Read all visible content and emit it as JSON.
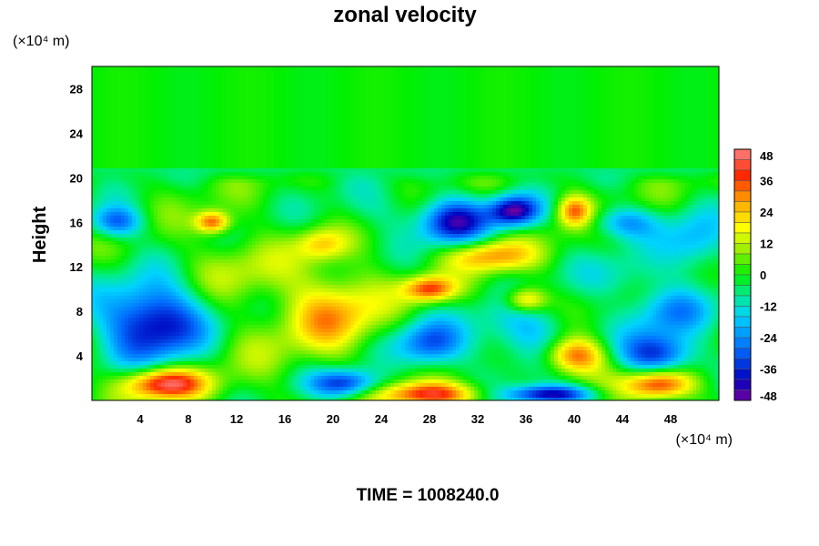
{
  "chart_data": {
    "type": "heatmap",
    "title": "zonal velocity",
    "ylabel": "Height",
    "xlabel": "",
    "x_unit": "(×10⁴ m)",
    "y_unit": "(×10⁴ m)",
    "xlim": [
      0,
      52
    ],
    "ylim": [
      0,
      30
    ],
    "x_ticks": [
      4,
      8,
      12,
      16,
      20,
      24,
      28,
      32,
      36,
      40,
      44,
      48
    ],
    "y_ticks": [
      4,
      8,
      12,
      16,
      20,
      24,
      28
    ],
    "colorbar": {
      "min": -48,
      "max": 48,
      "step": 4,
      "labels": [
        48,
        36,
        24,
        12,
        0,
        -12,
        -24,
        -36,
        -48
      ]
    },
    "upper_layer_value": 0,
    "blobs": [
      {
        "x": 5,
        "y": 7,
        "sx": 3.0,
        "sy": 2.5,
        "v": -44
      },
      {
        "x": 6,
        "y": 1.5,
        "sx": 2.5,
        "sy": 1.0,
        "v": 44
      },
      {
        "x": 20,
        "y": 8,
        "sx": 2.8,
        "sy": 2.5,
        "v": 26
      },
      {
        "x": 21,
        "y": 1.5,
        "sx": 2.0,
        "sy": 0.9,
        "v": -36
      },
      {
        "x": 28,
        "y": 0.5,
        "sx": 3.0,
        "sy": 0.8,
        "v": 40
      },
      {
        "x": 28,
        "y": 5,
        "sx": 2.0,
        "sy": 1.5,
        "v": -30
      },
      {
        "x": 28,
        "y": 10,
        "sx": 1.5,
        "sy": 0.8,
        "v": 36
      },
      {
        "x": 33,
        "y": 13,
        "sx": 2.5,
        "sy": 1.0,
        "v": 28
      },
      {
        "x": 38,
        "y": 0.5,
        "sx": 2.5,
        "sy": 0.6,
        "v": -44
      },
      {
        "x": 40,
        "y": 4,
        "sx": 1.8,
        "sy": 1.2,
        "v": 40
      },
      {
        "x": 47,
        "y": 4,
        "sx": 2.2,
        "sy": 1.5,
        "v": -38
      },
      {
        "x": 47,
        "y": 1.5,
        "sx": 2.0,
        "sy": 1.0,
        "v": 44
      },
      {
        "x": 30,
        "y": 16,
        "sx": 2.0,
        "sy": 1.5,
        "v": -38
      },
      {
        "x": 35,
        "y": 17,
        "sx": 1.5,
        "sy": 1.0,
        "v": -44
      },
      {
        "x": 2,
        "y": 16,
        "sx": 1.5,
        "sy": 1.0,
        "v": -30
      },
      {
        "x": 10,
        "y": 16,
        "sx": 1.0,
        "sy": 0.7,
        "v": 36
      },
      {
        "x": 19,
        "y": 14,
        "sx": 1.5,
        "sy": 1.0,
        "v": 20
      },
      {
        "x": 40,
        "y": 17,
        "sx": 1.0,
        "sy": 1.0,
        "v": 32
      },
      {
        "x": 44,
        "y": 16,
        "sx": 2.0,
        "sy": 1.0,
        "v": -22
      },
      {
        "x": 50,
        "y": 14,
        "sx": 2.0,
        "sy": 2.0,
        "v": -20
      },
      {
        "x": 48,
        "y": 8,
        "sx": 2.5,
        "sy": 1.5,
        "v": -20
      },
      {
        "x": 36,
        "y": 9,
        "sx": 1.2,
        "sy": 0.8,
        "v": 30
      },
      {
        "x": 14,
        "y": 5,
        "sx": 3.0,
        "sy": 3.0,
        "v": 5
      },
      {
        "x": 36,
        "y": 6,
        "sx": 3.0,
        "sy": 2.0,
        "v": -20
      },
      {
        "x": 24,
        "y": 17,
        "sx": 3.0,
        "sy": 1.5,
        "v": -8
      },
      {
        "x": 12,
        "y": 12,
        "sx": 3.0,
        "sy": 2.0,
        "v": 10
      },
      {
        "x": 44,
        "y": 11,
        "sx": 2.5,
        "sy": 1.5,
        "v": -12
      }
    ]
  },
  "time_label": "TIME = 1008240.0"
}
